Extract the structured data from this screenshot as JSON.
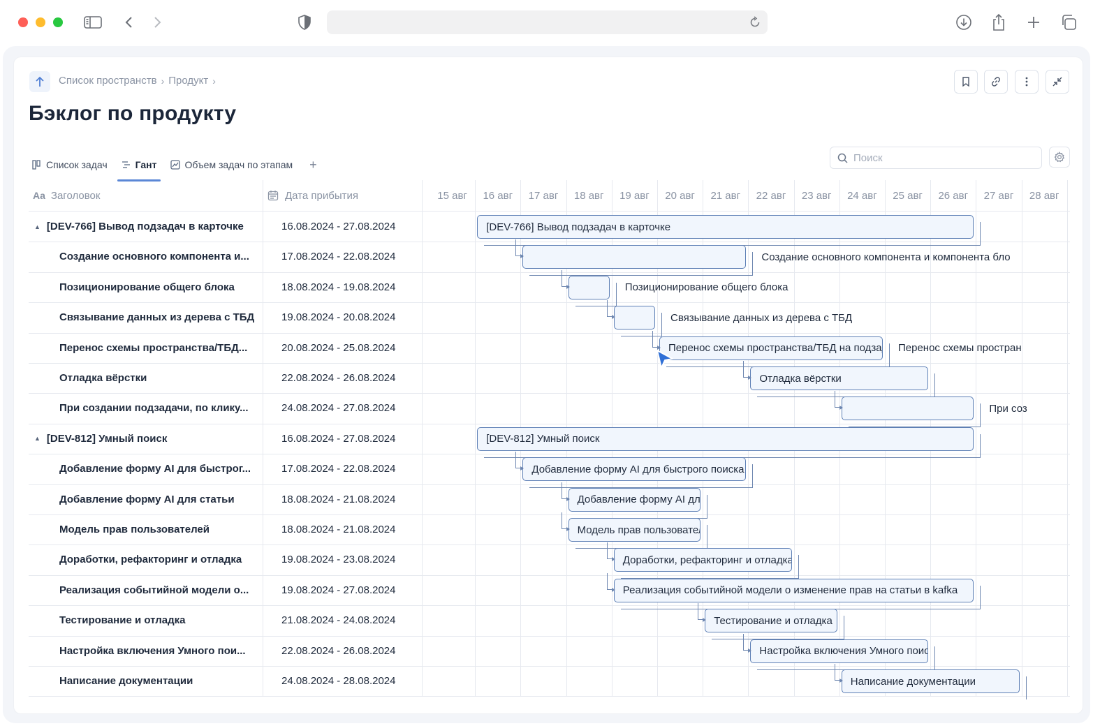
{
  "breadcrumb": {
    "items": [
      "Список пространств",
      "Продукт"
    ]
  },
  "page": {
    "title": "Бэклог по продукту"
  },
  "tabs": [
    {
      "label": "Список задач"
    },
    {
      "label": "Гант"
    },
    {
      "label": "Объем задач по этапам"
    }
  ],
  "search": {
    "placeholder": "Поиск"
  },
  "columns": {
    "title": "Заголовок",
    "date": "Дата прибытия"
  },
  "days": [
    "15 авг",
    "16 авг",
    "17 авг",
    "18 авг",
    "19 авг",
    "20 авг",
    "21 авг",
    "22 авг",
    "23 авг",
    "24 авг",
    "25 авг",
    "26 авг",
    "27 авг",
    "28 авг"
  ],
  "rows": [
    {
      "title": "[DEV-766] Вывод подзадач в карточке",
      "dates": "16.08.2024 - 27.08.2024",
      "group": true,
      "bar": "[DEV-766] Вывод подзадач в карточке",
      "label": ""
    },
    {
      "title": "Создание основного компонента и...",
      "dates": "17.08.2024 - 22.08.2024",
      "group": false,
      "bar": "",
      "label": "Создание основного компонента и компонента бло"
    },
    {
      "title": "Позиционирование общего блока",
      "dates": "18.08.2024 - 19.08.2024",
      "group": false,
      "bar": "",
      "label": "Позиционирование общего блока"
    },
    {
      "title": "Связывание данных из дерева с ТБД",
      "dates": "19.08.2024 - 20.08.2024",
      "group": false,
      "bar": "",
      "label": "Связывание данных из дерева с ТБД"
    },
    {
      "title": "Перенос схемы пространства/ТБД...",
      "dates": "20.08.2024 - 25.08.2024",
      "group": false,
      "bar": "Перенос схемы пространства/ТБД на подзадачи",
      "label": "Перенос схемы простран"
    },
    {
      "title": "Отладка вёрстки",
      "dates": "22.08.2024 - 26.08.2024",
      "group": false,
      "bar": "Отладка вёрстки",
      "label": ""
    },
    {
      "title": "При создании подзадачи, по клику...",
      "dates": "24.08.2024 - 27.08.2024",
      "group": false,
      "bar": "",
      "label": "При соз"
    },
    {
      "title": "[DEV-812] Умный поиск",
      "dates": "16.08.2024 - 27.08.2024",
      "group": true,
      "bar": "[DEV-812] Умный поиск",
      "label": ""
    },
    {
      "title": "Добавление форму AI для быстрог...",
      "dates": "17.08.2024 - 22.08.2024",
      "group": false,
      "bar": "Добавление форму AI для быстрого поиска",
      "label": ""
    },
    {
      "title": "Добавление форму AI для статьи",
      "dates": "18.08.2024 - 21.08.2024",
      "group": false,
      "bar": "Добавление форму AI для статьи",
      "label": ""
    },
    {
      "title": "Модель прав пользователей",
      "dates": "18.08.2024 - 21.08.2024",
      "group": false,
      "bar": "Модель прав пользователей",
      "label": ""
    },
    {
      "title": "Доработки, рефакторинг и отладка",
      "dates": "19.08.2024 - 23.08.2024",
      "group": false,
      "bar": "Доработки, рефакторинг и отладка",
      "label": ""
    },
    {
      "title": "Реализация событийной модели о...",
      "dates": "19.08.2024 - 27.08.2024",
      "group": false,
      "bar": "Реализация событийной модели о изменение прав на статьи в kafka",
      "label": ""
    },
    {
      "title": "Тестирование и отладка",
      "dates": "21.08.2024 - 24.08.2024",
      "group": false,
      "bar": "Тестирование и отладка",
      "label": ""
    },
    {
      "title": "Настройка включения Умного пои...",
      "dates": "22.08.2024 - 26.08.2024",
      "group": false,
      "bar": "Настройка включения Умного поиска",
      "label": ""
    },
    {
      "title": "Написание документации",
      "dates": "24.08.2024 - 28.08.2024",
      "group": false,
      "bar": "Написание документации",
      "label": ""
    }
  ]
}
